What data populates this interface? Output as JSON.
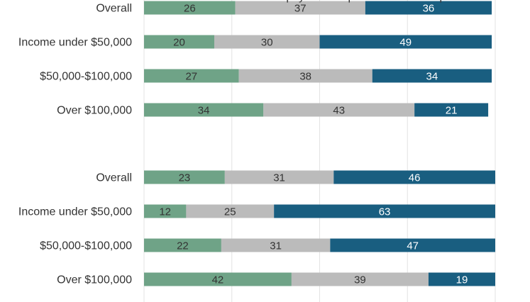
{
  "chart_data": {
    "type": "bar",
    "stacked": true,
    "orientation": "horizontal",
    "grid": true,
    "colors": [
      "#6fa387",
      "#bbbbbb",
      "#195e80"
    ],
    "label_colors": [
      "#333333",
      "#333333",
      "#ffffff"
    ],
    "panels": [
      {
        "title": "",
        "categories": [
          "Overall",
          "Income under $50,000",
          "$50,000-$100,000",
          "Over $100,000"
        ],
        "series": [
          {
            "values": [
              26,
              20,
              27,
              34
            ]
          },
          {
            "values": [
              37,
              30,
              38,
              43
            ]
          },
          {
            "values": [
              36,
              49,
              34,
              21
            ]
          }
        ]
      },
      {
        "title": "You would be able to pay an unexpected medical expense",
        "categories": [
          "Overall",
          "Income under $50,000",
          "$50,000-$100,000",
          "Over $100,000"
        ],
        "series": [
          {
            "values": [
              23,
              12,
              22,
              42
            ]
          },
          {
            "values": [
              31,
              25,
              31,
              39
            ]
          },
          {
            "values": [
              46,
              63,
              47,
              19
            ]
          }
        ]
      }
    ]
  }
}
